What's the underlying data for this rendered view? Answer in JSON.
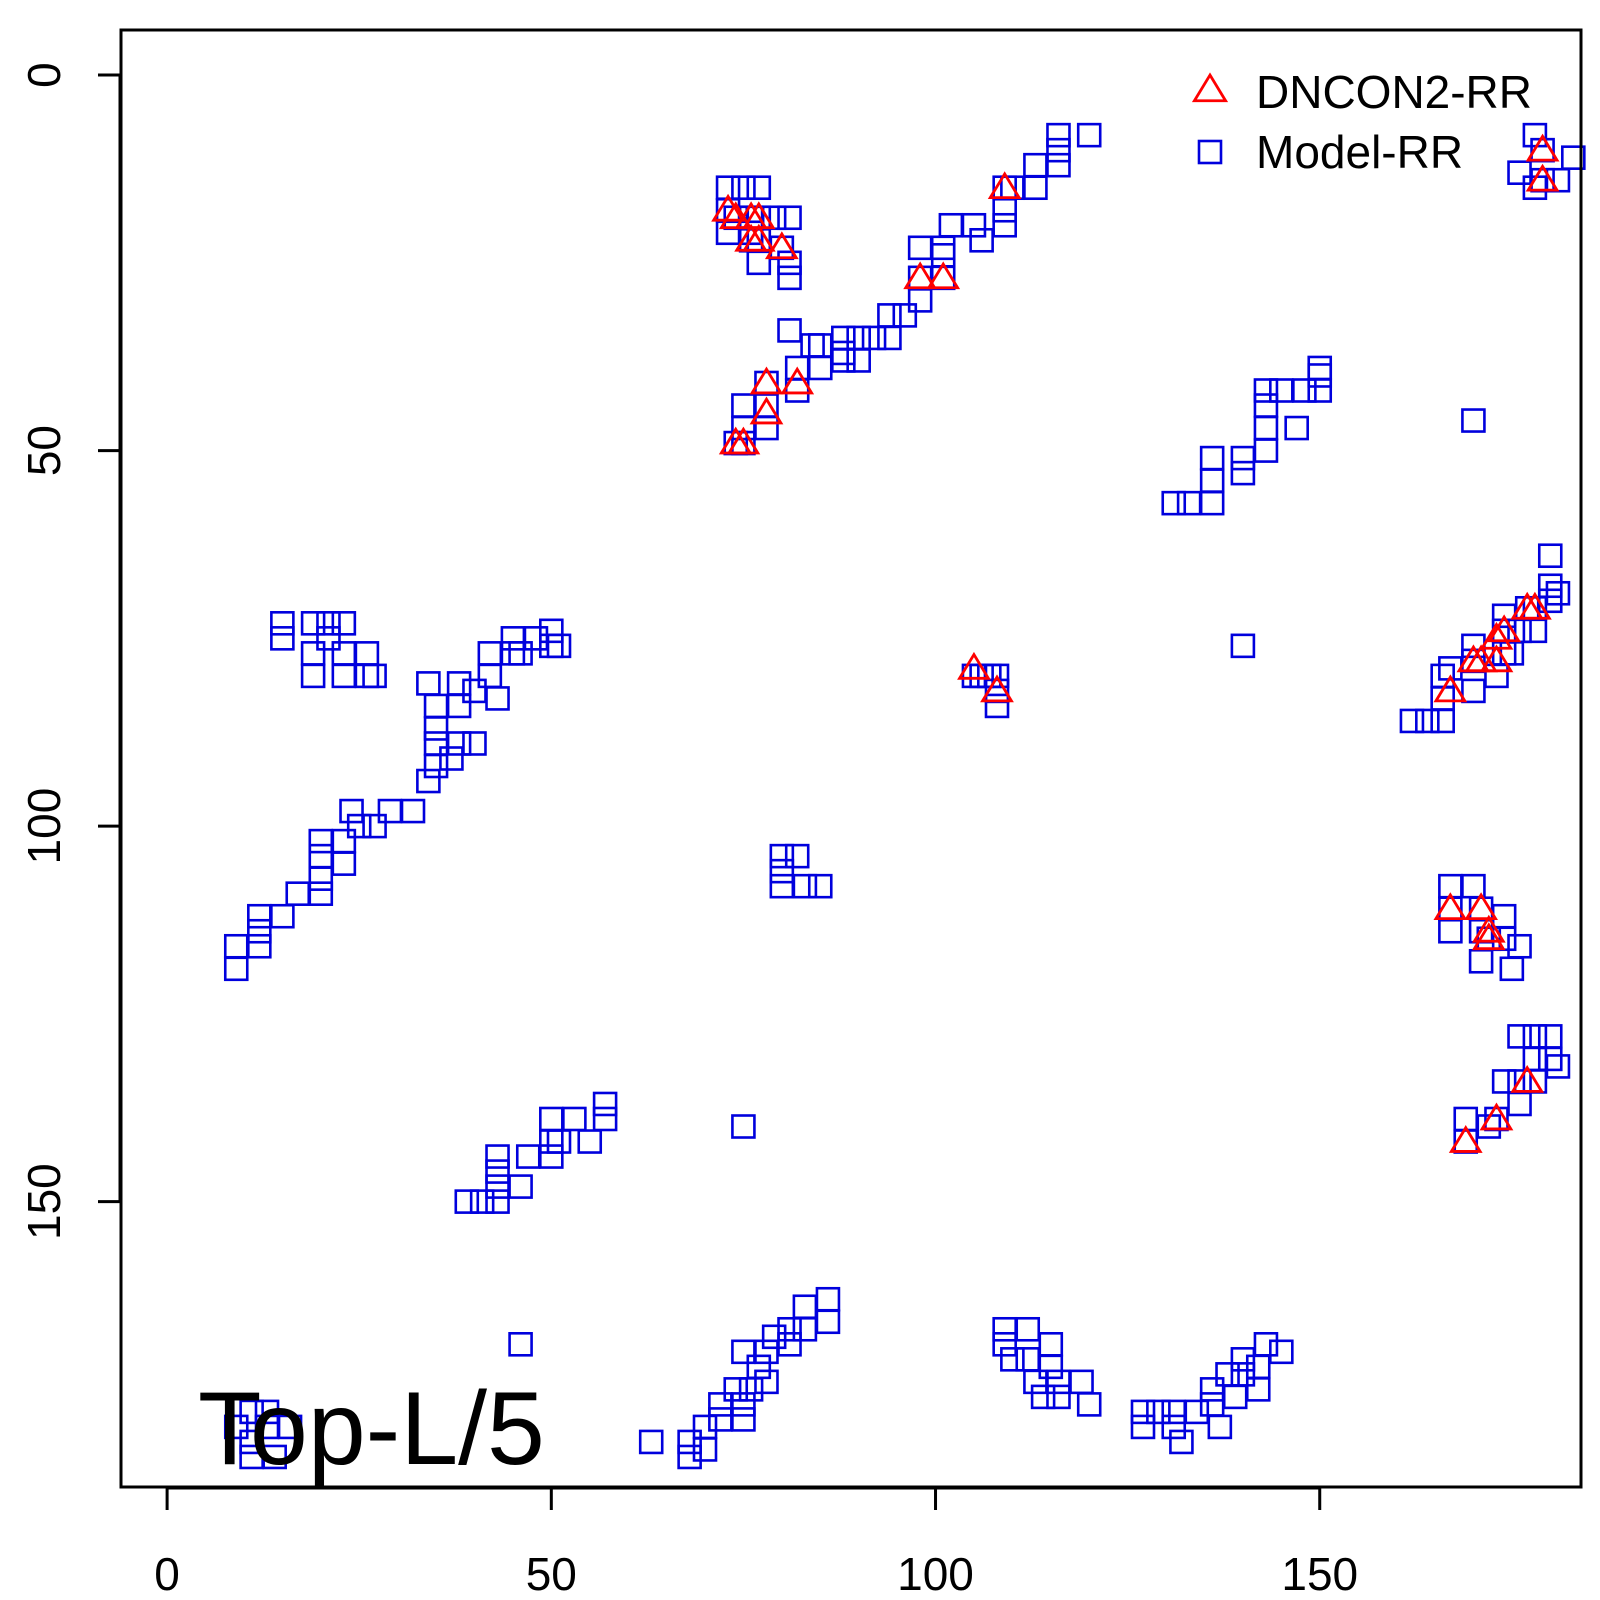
{
  "chart_data": {
    "type": "scatter",
    "xlim": [
      -6,
      184
    ],
    "ylim": [
      -6,
      188
    ],
    "y_reversed": true,
    "x_ticks": [
      0,
      50,
      100,
      150
    ],
    "y_ticks": [
      0,
      50,
      100,
      150
    ],
    "grid": false,
    "legend_position": "top-right",
    "annotation": "Top-L/5",
    "series": [
      {
        "name": "DNCON2-RR",
        "marker": "triangle",
        "color": "#ff0000",
        "points": [
          [
            73,
            18
          ],
          [
            74,
            19
          ],
          [
            76,
            19
          ],
          [
            77,
            19
          ],
          [
            76,
            22
          ],
          [
            77,
            22
          ],
          [
            80,
            23
          ],
          [
            98,
            27
          ],
          [
            101,
            27
          ],
          [
            109,
            15
          ],
          [
            74,
            49
          ],
          [
            75,
            49
          ],
          [
            78,
            41
          ],
          [
            82,
            41
          ],
          [
            78,
            45
          ],
          [
            105,
            79
          ],
          [
            108,
            82
          ],
          [
            167,
            82
          ],
          [
            170,
            78
          ],
          [
            171,
            78
          ],
          [
            173,
            78
          ],
          [
            173,
            75
          ],
          [
            174,
            74
          ],
          [
            177,
            71
          ],
          [
            178,
            71
          ],
          [
            167,
            111
          ],
          [
            171,
            111
          ],
          [
            172,
            114
          ],
          [
            172,
            115
          ],
          [
            169,
            142
          ],
          [
            173,
            139
          ],
          [
            177,
            134
          ],
          [
            179,
            10
          ],
          [
            179,
            14
          ]
        ]
      },
      {
        "name": "Model-RR",
        "marker": "square",
        "color": "#0000dd",
        "points": [
          [
            73,
            15
          ],
          [
            75,
            15
          ],
          [
            77,
            15
          ],
          [
            73,
            18
          ],
          [
            74,
            19
          ],
          [
            76,
            19
          ],
          [
            77,
            19
          ],
          [
            73,
            21
          ],
          [
            76,
            21
          ],
          [
            79,
            19
          ],
          [
            81,
            19
          ],
          [
            76,
            22
          ],
          [
            77,
            22
          ],
          [
            80,
            23
          ],
          [
            77,
            25
          ],
          [
            81,
            25
          ],
          [
            81,
            27
          ],
          [
            98,
            23
          ],
          [
            101,
            23
          ],
          [
            102,
            20
          ],
          [
            105,
            20
          ],
          [
            106,
            22
          ],
          [
            109,
            20
          ],
          [
            109,
            18
          ],
          [
            109,
            15
          ],
          [
            110,
            15
          ],
          [
            113,
            15
          ],
          [
            113,
            12
          ],
          [
            116,
            12
          ],
          [
            116,
            10
          ],
          [
            116,
            8
          ],
          [
            120,
            8
          ],
          [
            98,
            27
          ],
          [
            101,
            27
          ],
          [
            101,
            24
          ],
          [
            98,
            30
          ],
          [
            96,
            32
          ],
          [
            94,
            32
          ],
          [
            94,
            35
          ],
          [
            92,
            35
          ],
          [
            90,
            35
          ],
          [
            88,
            35
          ],
          [
            88,
            37
          ],
          [
            85,
            36
          ],
          [
            84,
            36
          ],
          [
            90,
            38
          ],
          [
            88,
            38
          ],
          [
            85,
            39
          ],
          [
            82,
            39
          ],
          [
            82,
            42
          ],
          [
            81,
            34
          ],
          [
            78,
            41
          ],
          [
            78,
            44
          ],
          [
            78,
            47
          ],
          [
            75,
            44
          ],
          [
            75,
            47
          ],
          [
            74,
            49
          ],
          [
            75,
            49
          ],
          [
            105,
            80
          ],
          [
            106,
            80
          ],
          [
            107,
            80
          ],
          [
            108,
            80
          ],
          [
            108,
            82
          ],
          [
            108,
            84
          ],
          [
            131,
            57
          ],
          [
            133,
            57
          ],
          [
            136,
            57
          ],
          [
            136,
            54
          ],
          [
            136,
            51
          ],
          [
            140,
            51
          ],
          [
            140,
            53
          ],
          [
            143,
            50
          ],
          [
            143,
            47
          ],
          [
            143,
            44
          ],
          [
            143,
            42
          ],
          [
            145,
            42
          ],
          [
            148,
            42
          ],
          [
            150,
            42
          ],
          [
            150,
            40
          ],
          [
            150,
            39
          ],
          [
            147,
            47
          ],
          [
            140,
            76
          ],
          [
            170,
            46
          ],
          [
            162,
            86
          ],
          [
            164,
            86
          ],
          [
            166,
            86
          ],
          [
            166,
            83
          ],
          [
            166,
            80
          ],
          [
            167,
            79
          ],
          [
            170,
            76
          ],
          [
            170,
            78
          ],
          [
            170,
            82
          ],
          [
            173,
            80
          ],
          [
            174,
            77
          ],
          [
            174,
            74
          ],
          [
            174,
            72
          ],
          [
            175,
            77
          ],
          [
            176,
            74
          ],
          [
            177,
            71
          ],
          [
            178,
            71
          ],
          [
            178,
            74
          ],
          [
            180,
            70
          ],
          [
            180,
            68
          ],
          [
            181,
            69
          ],
          [
            180,
            64
          ],
          [
            167,
            108
          ],
          [
            170,
            108
          ],
          [
            167,
            111
          ],
          [
            171,
            111
          ],
          [
            167,
            114
          ],
          [
            171,
            114
          ],
          [
            172,
            115
          ],
          [
            171,
            118
          ],
          [
            174,
            112
          ],
          [
            174,
            115
          ],
          [
            176,
            116
          ],
          [
            175,
            119
          ],
          [
            169,
            142
          ],
          [
            169,
            139
          ],
          [
            172,
            140
          ],
          [
            173,
            139
          ],
          [
            174,
            134
          ],
          [
            176,
            134
          ],
          [
            176,
            137
          ],
          [
            176,
            128
          ],
          [
            178,
            128
          ],
          [
            178,
            131
          ],
          [
            178,
            134
          ],
          [
            180,
            128
          ],
          [
            180,
            131
          ],
          [
            181,
            132
          ],
          [
            176,
            13
          ],
          [
            179,
            10
          ],
          [
            179,
            14
          ],
          [
            178,
            15
          ],
          [
            181,
            14
          ],
          [
            183,
            11
          ],
          [
            178,
            8
          ],
          [
            15,
            73
          ],
          [
            15,
            75
          ],
          [
            19,
            73
          ],
          [
            19,
            77
          ],
          [
            21,
            73
          ],
          [
            21,
            75
          ],
          [
            23,
            73
          ],
          [
            23,
            77
          ],
          [
            26,
            77
          ],
          [
            26,
            80
          ],
          [
            23,
            80
          ],
          [
            27,
            80
          ],
          [
            19,
            80
          ],
          [
            34,
            81
          ],
          [
            38,
            81
          ],
          [
            42,
            80
          ],
          [
            40,
            82
          ],
          [
            38,
            84
          ],
          [
            43,
            83
          ],
          [
            42,
            77
          ],
          [
            45,
            75
          ],
          [
            45,
            77
          ],
          [
            46,
            77
          ],
          [
            48,
            75
          ],
          [
            50,
            74
          ],
          [
            50,
            76
          ],
          [
            51,
            76
          ],
          [
            35,
            84
          ],
          [
            35,
            87
          ],
          [
            35,
            89
          ],
          [
            35,
            92
          ],
          [
            38,
            89
          ],
          [
            40,
            89
          ],
          [
            37,
            91
          ],
          [
            34,
            94
          ],
          [
            32,
            98
          ],
          [
            29,
            98
          ],
          [
            27,
            100
          ],
          [
            24,
            98
          ],
          [
            25,
            100
          ],
          [
            23,
            102
          ],
          [
            20,
            102
          ],
          [
            20,
            104
          ],
          [
            20,
            107
          ],
          [
            23,
            105
          ],
          [
            17,
            109
          ],
          [
            20,
            109
          ],
          [
            12,
            112
          ],
          [
            15,
            112
          ],
          [
            12,
            114
          ],
          [
            12,
            116
          ],
          [
            9,
            116
          ],
          [
            9,
            119
          ],
          [
            80,
            104
          ],
          [
            82,
            104
          ],
          [
            80,
            106
          ],
          [
            80,
            108
          ],
          [
            83,
            108
          ],
          [
            85,
            108
          ],
          [
            57,
            137
          ],
          [
            57,
            139
          ],
          [
            53,
            139
          ],
          [
            50,
            139
          ],
          [
            50,
            142
          ],
          [
            50,
            144
          ],
          [
            51,
            142
          ],
          [
            55,
            142
          ],
          [
            47,
            144
          ],
          [
            43,
            144
          ],
          [
            43,
            146
          ],
          [
            43,
            148
          ],
          [
            46,
            148
          ],
          [
            43,
            150
          ],
          [
            41,
            150
          ],
          [
            39,
            150
          ],
          [
            75,
            140
          ],
          [
            46,
            169
          ],
          [
            11,
            178
          ],
          [
            13,
            180
          ],
          [
            16,
            180
          ],
          [
            13,
            178
          ],
          [
            9,
            180
          ],
          [
            11,
            182
          ],
          [
            11,
            184
          ],
          [
            14,
            184
          ],
          [
            63,
            182
          ],
          [
            68,
            182
          ],
          [
            68,
            184
          ],
          [
            70,
            183
          ],
          [
            70,
            180
          ],
          [
            72,
            179
          ],
          [
            72,
            177
          ],
          [
            74,
            175
          ],
          [
            75,
            177
          ],
          [
            75,
            179
          ],
          [
            76,
            175
          ],
          [
            77,
            172
          ],
          [
            78,
            170
          ],
          [
            78,
            174
          ],
          [
            79,
            168
          ],
          [
            81,
            167
          ],
          [
            81,
            169
          ],
          [
            83,
            167
          ],
          [
            83,
            164
          ],
          [
            86,
            163
          ],
          [
            86,
            166
          ],
          [
            75,
            170
          ],
          [
            109,
            167
          ],
          [
            109,
            169
          ],
          [
            110,
            171
          ],
          [
            112,
            167
          ],
          [
            115,
            169
          ],
          [
            112,
            171
          ],
          [
            113,
            174
          ],
          [
            115,
            172
          ],
          [
            116,
            176
          ],
          [
            116,
            174
          ],
          [
            119,
            174
          ],
          [
            120,
            177
          ],
          [
            114,
            176
          ],
          [
            127,
            178
          ],
          [
            127,
            180
          ],
          [
            129,
            178
          ],
          [
            131,
            178
          ],
          [
            131,
            180
          ],
          [
            132,
            182
          ],
          [
            134,
            178
          ],
          [
            136,
            175
          ],
          [
            136,
            177
          ],
          [
            137,
            180
          ],
          [
            139,
            176
          ],
          [
            140,
            173
          ],
          [
            140,
            171
          ],
          [
            142,
            172
          ],
          [
            143,
            169
          ],
          [
            145,
            170
          ],
          [
            142,
            175
          ],
          [
            138,
            173
          ]
        ]
      }
    ]
  }
}
